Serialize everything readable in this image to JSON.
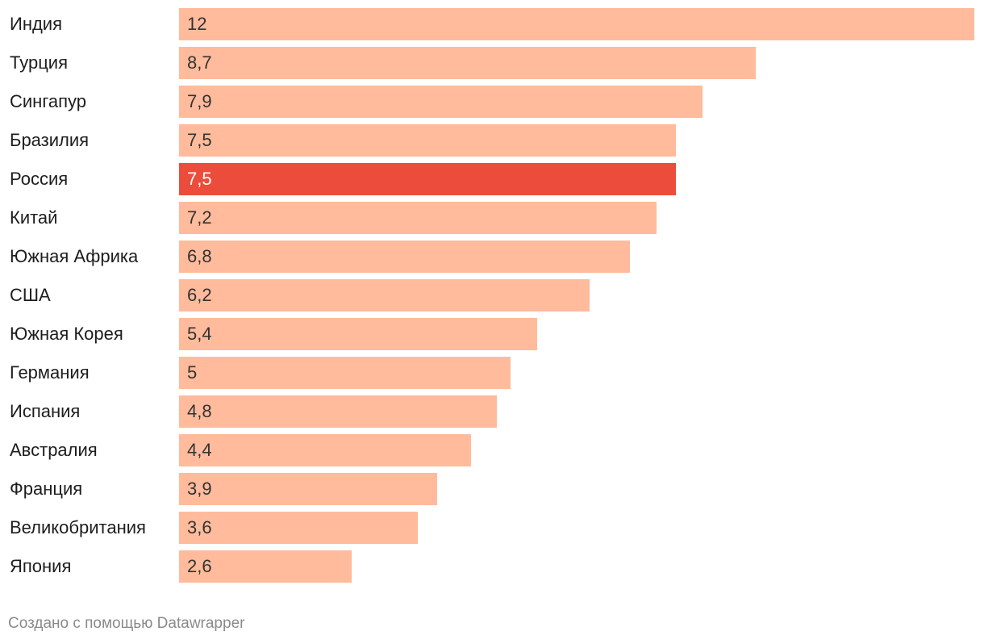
{
  "chart_data": {
    "type": "bar",
    "orientation": "horizontal",
    "categories": [
      "Индия",
      "Турция",
      "Сингапур",
      "Бразилия",
      "Россия",
      "Китай",
      "Южная Африка",
      "США",
      "Южная Корея",
      "Германия",
      "Испания",
      "Австралия",
      "Франция",
      "Великобритания",
      "Япония"
    ],
    "values": [
      12,
      8.7,
      7.9,
      7.5,
      7.5,
      7.2,
      6.8,
      6.2,
      5.4,
      5,
      4.8,
      4.4,
      3.9,
      3.6,
      2.6
    ],
    "value_labels": [
      "12",
      "8,7",
      "7,9",
      "7,5",
      "7,5",
      "7,2",
      "6,8",
      "6,2",
      "5,4",
      "5",
      "4,8",
      "4,4",
      "3,9",
      "3,6",
      "2,6"
    ],
    "highlight": "Россия",
    "xlim": [
      0,
      12
    ],
    "grid": false,
    "legend": "none",
    "colors": {
      "bar": "#ffbb9c",
      "highlight": "#ec4c3c"
    }
  },
  "footer": {
    "credit": "Создано с помощью Datawrapper"
  }
}
